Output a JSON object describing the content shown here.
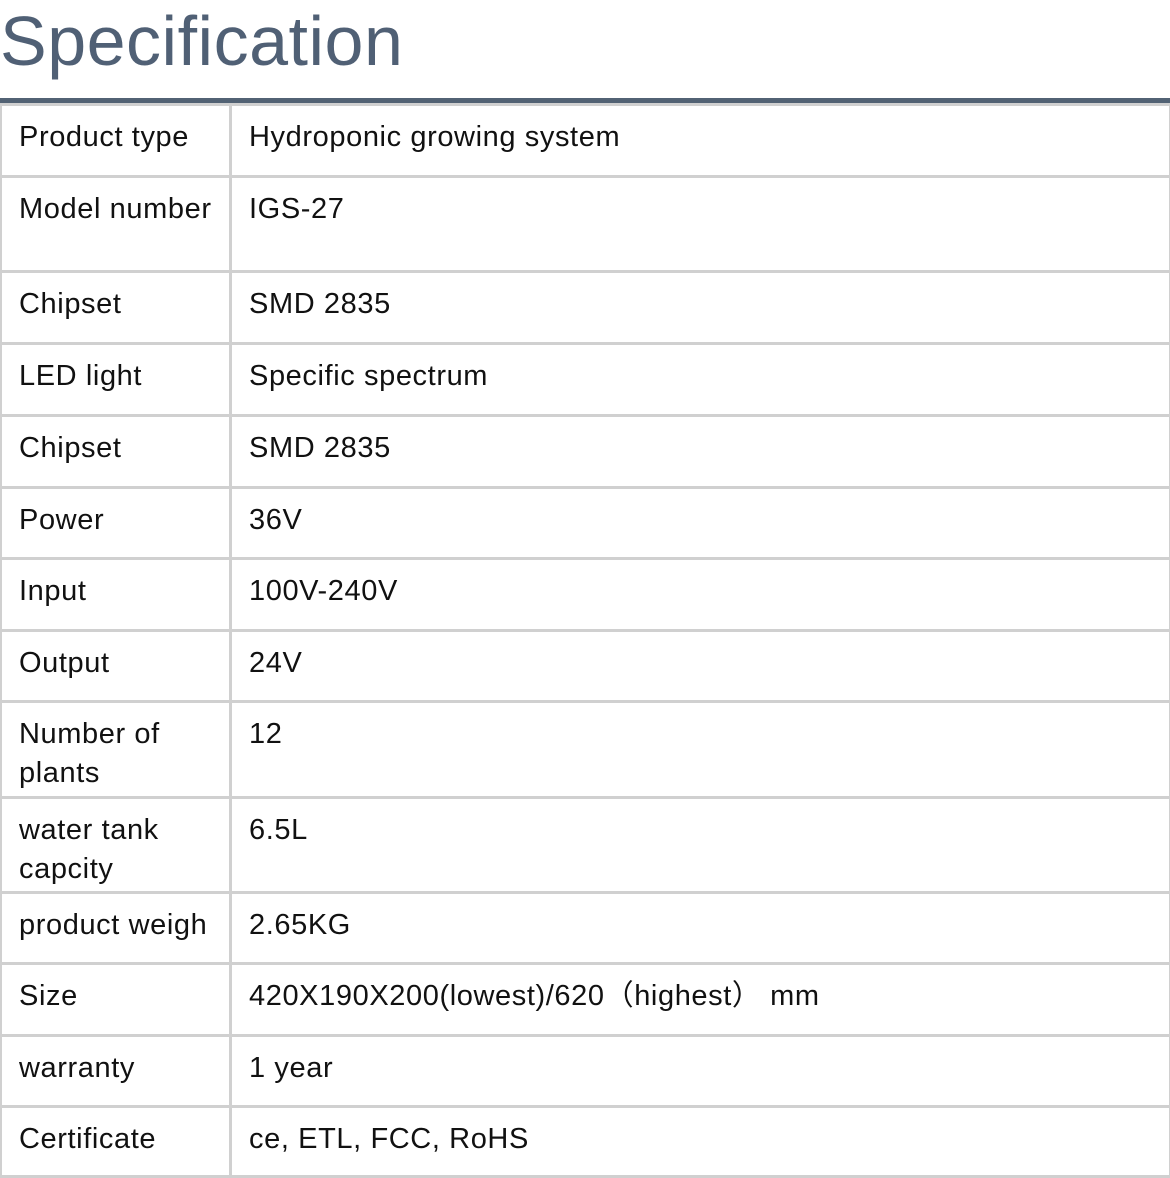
{
  "title": "Specification",
  "rows": [
    {
      "label": "Product type",
      "value": "Hydroponic growing system"
    },
    {
      "label": "Model number",
      "value": "IGS-27"
    },
    {
      "label": "Chipset",
      "value": "SMD 2835"
    },
    {
      "label": "LED light",
      "value": "Specific spectrum"
    },
    {
      "label": "Chipset",
      "value": "SMD 2835"
    },
    {
      "label": "Power",
      "value": "36V"
    },
    {
      "label": "Input",
      "value": "100V-240V"
    },
    {
      "label": "Output",
      "value": "24V"
    },
    {
      "label": "Number of plants",
      "value": "12"
    },
    {
      "label": "water tank capcity",
      "value": "6.5L"
    },
    {
      "label": "product weigh",
      "value": "2.65KG"
    },
    {
      "label": "Size",
      "value": "420X190X200(lowest)/620（highest） mm"
    },
    {
      "label": "warranty",
      "value": "1 year"
    },
    {
      "label": "Certificate",
      "value": "ce, ETL, FCC, RoHS"
    }
  ]
}
